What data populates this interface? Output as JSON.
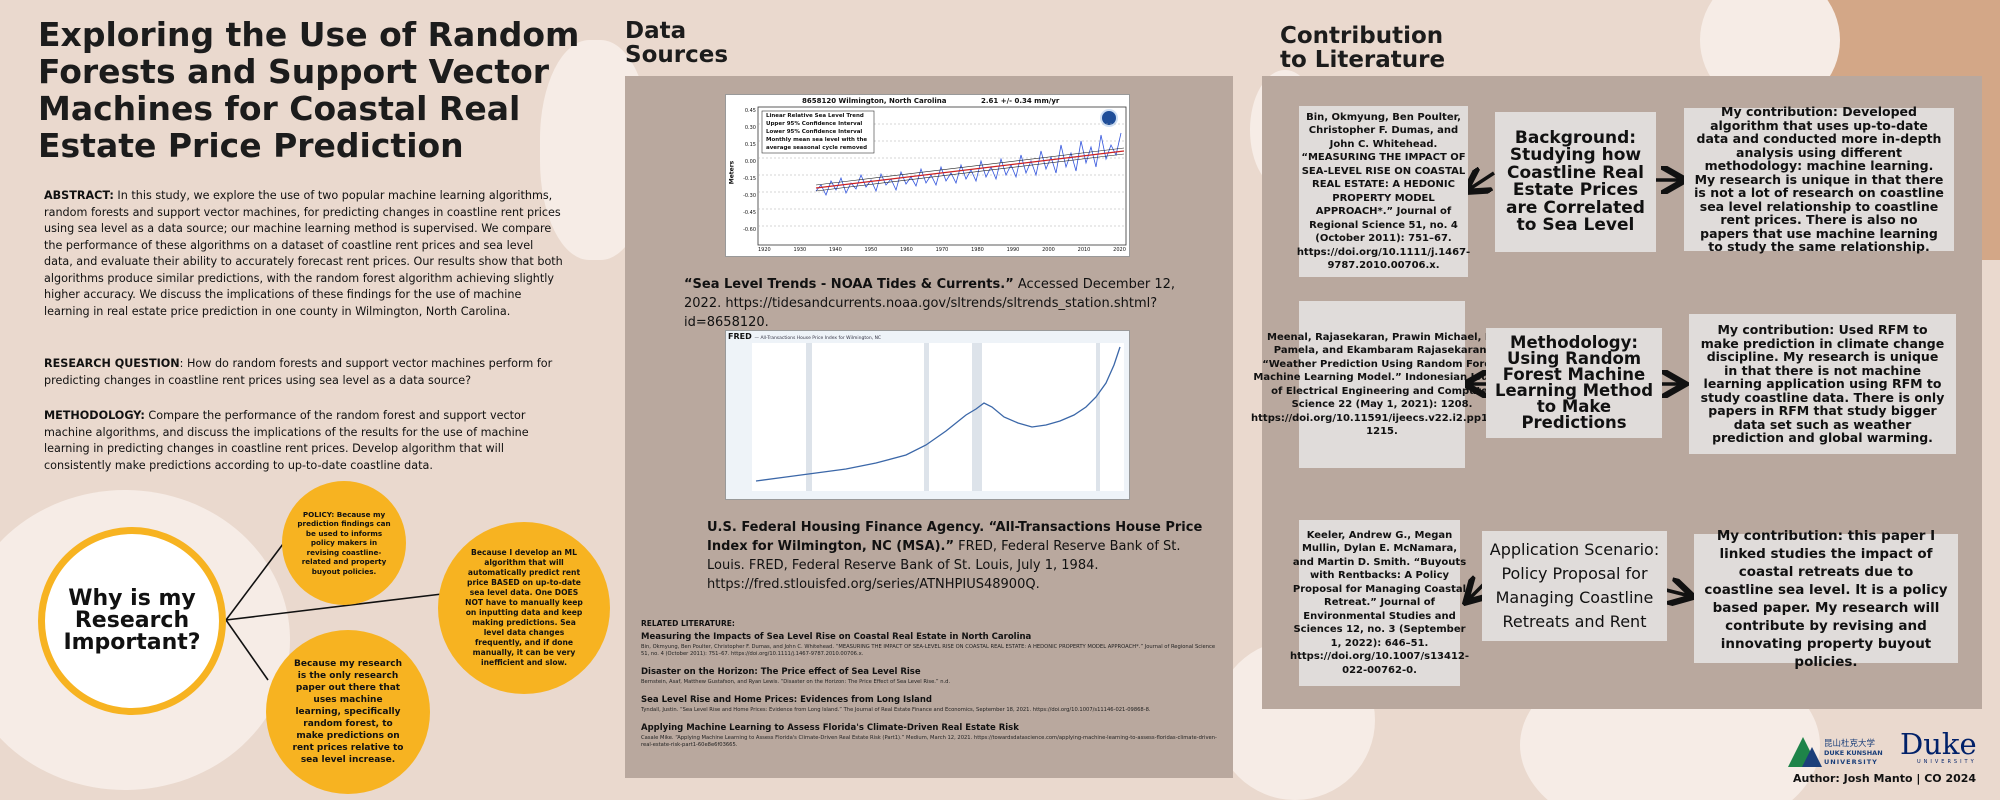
{
  "title": "Exploring the Use of Random Forests and Support Vector Machines for Coastal Real Estate Price Prediction",
  "abstract": {
    "label": "ABSTRACT:",
    "text": " In this study, we explore the use of two popular machine learning algorithms, random forests and support vector machines, for predicting changes in coastline rent prices using sea level as a data source; our machine learning method is supervised. We compare the performance of these algorithms on a dataset of coastline rent prices and sea level data, and evaluate their ability to accurately forecast rent prices. Our results show that both algorithms produce similar predictions, with the random forest algorithm achieving slightly higher accuracy. We discuss the implications of these findings for the use of machine learning in real estate price prediction in one county in Wilmington, North Carolina."
  },
  "research_question": {
    "label": "RESEARCH QUESTION",
    "text": ": How do random forests and support vector machines perform for predicting changes in coastline rent prices using sea level as a data source?"
  },
  "methodology": {
    "label": "METHODOLOGY:",
    "text": " Compare the performance of the random forest and support vector machine algorithms, and discuss the implications of the results for the use of machine learning in predicting changes in coastline rent prices. Develop algorithm that will consistently make predictions according to up-to-date coastline data."
  },
  "why_important": {
    "center": "Why is my Research Important?",
    "policy": "POLICY: Because my prediction findings can be used to informs policy makers in revising coastline-related and property buyout policies.",
    "develop": "Because I develop an ML algorithm that will automatically predict rent price BASED on up-to-date sea level data. One DOES NOT have to manually keep on inputting data and keep making predictions. Sea level data changes frequently, and if done manually, it can be very inefficient and slow.",
    "only": "Because my research is the only research paper out there that uses machine learning, specifically random forest, to make predictions on rent prices relative to sea level increase."
  },
  "data_sources": {
    "heading": "Data Sources",
    "chart1": {
      "title": "8658120 Wilmington, North Carolina",
      "rate": "2.61 +/- 0.34 mm/yr",
      "legend": [
        "Linear Relative Sea Level Trend",
        "Upper 95% Confidence Interval",
        "Lower 95% Confidence Interval",
        "Monthly mean sea level with the",
        "average seasonal cycle removed"
      ],
      "ylabel": "Meters",
      "yticks": [
        "0.45",
        "0.30",
        "0.15",
        "0.00",
        "-0.15",
        "-0.30",
        "-0.45",
        "-0.60"
      ],
      "xticks": [
        "1920",
        "1930",
        "1940",
        "1950",
        "1960",
        "1970",
        "1980",
        "1990",
        "2000",
        "2010",
        "2020"
      ]
    },
    "chart2": {
      "brand": "FRED",
      "legend": "— All-Transactions House Price Index for Wilmington, NC"
    },
    "cite1_title": "“Sea Level Trends - NOAA Tides & Currents.”",
    "cite1_rest": " Accessed December 12, 2022. https://tidesandcurrents.noaa.gov/sltrends/sltrends_station.shtml?id=8658120.",
    "cite2_title": "U.S. Federal Housing Finance Agency. “All-Transactions House Price Index for Wilmington, NC (MSA).”",
    "cite2_rest": " FRED, Federal Reserve Bank of St. Louis. FRED, Federal Reserve Bank of St. Louis, July 1, 1984. https://fred.stlouisfed.org/series/ATNHPIUS48900Q.",
    "related_label": "RELATED LITERATURE:",
    "related": [
      {
        "title": "Measuring the Impacts of Sea Level Rise on Coastal Real Estate in North Carolina",
        "text": "Bin, Okmyung, Ben Poulter, Christopher F. Dumas, and John C. Whitehead. “MEASURING THE IMPACT OF SEA-LEVEL RISE ON COASTAL REAL ESTATE: A HEDONIC PROPERTY MODEL APPROACH*.” Journal of Regional Science 51, no. 4 (October 2011): 751–67. https://doi.org/10.1111/j.1467-9787.2010.00706.x."
      },
      {
        "title": "Disaster on the Horizon: The Price effect of Sea Level Rise",
        "text": "Bernstein, Asaf, Matthew Gustafson, and Ryan Lewis. “Disaster on the Horizon: The Price Effect of Sea Level Rise.” n.d."
      },
      {
        "title": "Sea Level Rise and Home Prices: Evidences from Long Island",
        "text": "Tyndall, Justin. “Sea Level Rise and Home Prices: Evidence from Long Island.” The Journal of Real Estate Finance and Economics, September 18, 2021. https://doi.org/10.1007/s11146-021-09868-8."
      },
      {
        "title": "Applying Machine Learning to Assess Florida's Climate-Driven Real Estate Risk",
        "text": "Casale Mike. “Applying Machine Learning to Assess Florida's Climate-Driven Real Estate Risk (Part1).” Medium, March 12, 2021. https://towardsdatascience.com/applying-machine-learning-to-assess-floridas-climate-driven-real-estate-risk-part1-60e8e6f03665."
      }
    ]
  },
  "contribution": {
    "heading": "Contribution to Literature",
    "rows": [
      {
        "ref": "Bin, Okmyung, Ben Poulter, Christopher F. Dumas, and John C. Whitehead. “MEASURING THE IMPACT OF SEA-LEVEL RISE ON COASTAL REAL ESTATE: A HEDONIC PROPERTY MODEL APPROACH*.” Journal of Regional Science 51, no. 4 (October 2011): 751–67. https://doi.org/10.1111/j.1467-9787.2010.00706.x.",
        "theme": "Background: Studying how Coastline Real Estate Prices are Correlated to Sea Level",
        "mine": "My contribution:  Developed algorithm that uses up-to-date data and conducted more in-depth analysis using different methodology: machine learning. My research is unique in that there is not a lot of research on coastline sea level relationship to coastline rent prices. There is also no papers that use machine learning to study the same relationship."
      },
      {
        "ref": "Meenal, Rajasekaran, Prawin Michael, D. Pamela, and Ekambaram Rajasekaran. “Weather Prediction Using Random Forest Machine Learning Model.” Indonesian Journal of Electrical Engineering and Computer Science 22 (May 1, 2021): 1208. https://doi.org/10.11591/ijeecs.v22.i2.pp1208-1215.",
        "theme": "Methodology: Using Random Forest Machine Learning Method to Make Predictions",
        "mine": "My contribution: Used RFM to make prediction in climate change discipline. My research is unique in that there is not machine learning application using RFM to study coastline data. There is only papers in RFM that study bigger data set such as weather prediction and global warming."
      },
      {
        "ref": "Keeler, Andrew G., Megan Mullin, Dylan E. McNamara, and Martin D. Smith. “Buyouts with Rentbacks: A Policy Proposal for Managing Coastal Retreat.” Journal of Environmental Studies and Sciences 12, no. 3 (September 1, 2022): 646–51. https://doi.org/10.1007/s13412-022-00762-0.",
        "theme": "Application Scenario: Policy Proposal for Managing Coastline Retreats and Rent",
        "mine": "My contribution: this paper I linked studies the impact of coastal retreats due to coastline sea level. It is a policy based paper. My research will contribute by revising and innovating property buyout policies."
      }
    ]
  },
  "footer": {
    "dku_cn": "昆山杜克大学",
    "dku_en1": "DUKE KUNSHAN",
    "dku_en2": "UNIVERSITY",
    "duke": "Duke",
    "duke_sub": "UNIVERSITY",
    "author": "Author: Josh Manto | CO 2024"
  },
  "colors": {
    "background": "#ead9ce",
    "panel": "#b9a89e",
    "accent": "#f7b321",
    "box": "#e0dcda",
    "tan": "#d3a787"
  }
}
